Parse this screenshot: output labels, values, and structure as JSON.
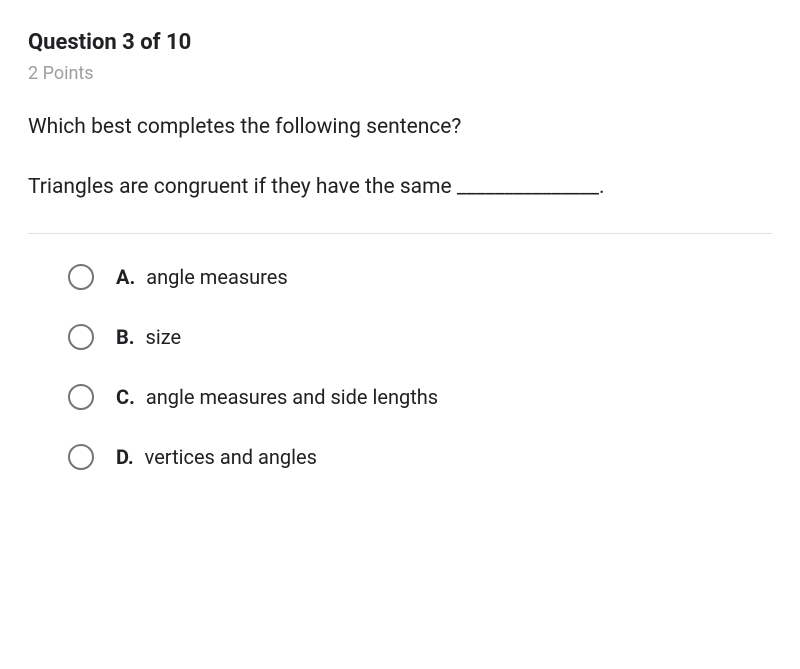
{
  "header": {
    "title": "Question 3 of 10",
    "points": "2 Points"
  },
  "question": {
    "prompt": "Which best completes the following sentence?",
    "sentence": "Triangles are congruent if they have the same _______________."
  },
  "options": [
    {
      "letter": "A.",
      "text": "angle measures"
    },
    {
      "letter": "B.",
      "text": "size"
    },
    {
      "letter": "C.",
      "text": "angle measures and side lengths"
    },
    {
      "letter": "D.",
      "text": "vertices and angles"
    }
  ]
}
